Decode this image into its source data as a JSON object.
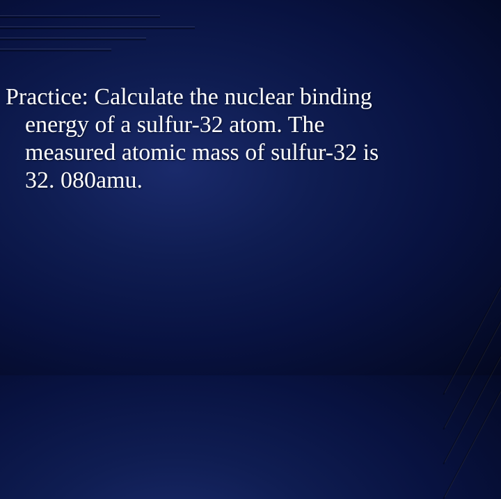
{
  "slide": {
    "text_line1": "Practice:  Calculate the nuclear binding",
    "text_line2": "energy of a sulfur-32 atom.  The",
    "text_line3": "measured atomic mass of sulfur-32 is",
    "text_line4": "32. 080amu.",
    "background": {
      "center_color": "#1a2a6b",
      "mid_color": "#0f1d52",
      "outer_color": "#030820"
    },
    "text_color": "#ffffff",
    "font_family": "Times New Roman",
    "font_size_pt": 26,
    "streak_highlight": "rgba(255,255,255,0.12)",
    "streak_shadow": "rgba(0,0,0,0.35)"
  }
}
